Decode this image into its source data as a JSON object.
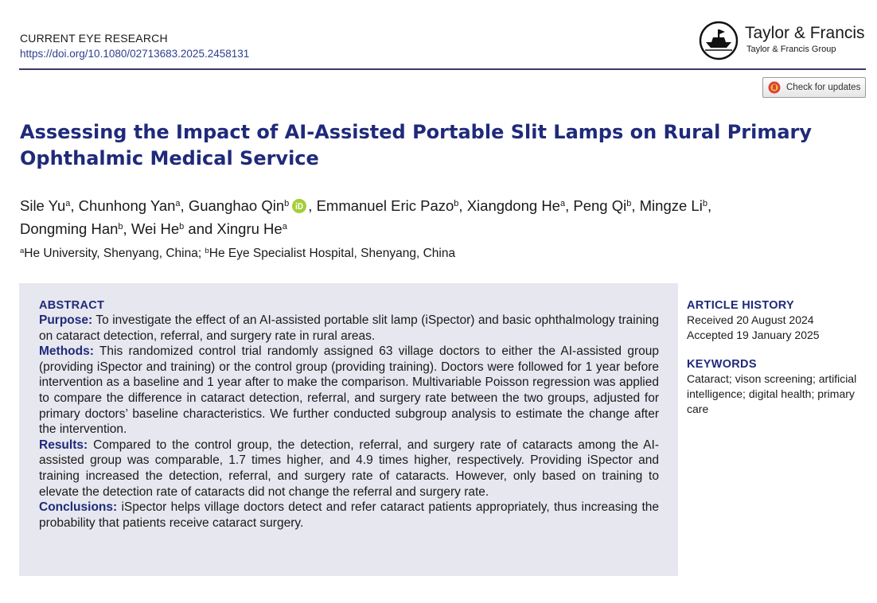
{
  "header": {
    "journal": "CURRENT EYE RESEARCH",
    "doi": "https://doi.org/10.1080/02713683.2025.2458131",
    "publisher_name": "Taylor & Francis",
    "publisher_group": "Taylor & Francis Group",
    "check_updates": "Check for updates"
  },
  "title": "Assessing the Impact of AI-Assisted Portable Slit Lamps on Rural Primary Ophthalmic Medical Service",
  "authors": [
    {
      "name": "Sile Yu",
      "aff": "a"
    },
    {
      "name": "Chunhong Yan",
      "aff": "a"
    },
    {
      "name": "Guanghao Qin",
      "aff": "b"
    },
    {
      "name": "Emmanuel Eric Pazo",
      "aff": "b"
    },
    {
      "name": "Xiangdong He",
      "aff": "a"
    },
    {
      "name": "Peng Qi",
      "aff": "b"
    },
    {
      "name": "Mingze Li",
      "aff": "b"
    },
    {
      "name": "Dongming Han",
      "aff": "b"
    },
    {
      "name": "Wei He",
      "aff": "b"
    },
    {
      "name": "Xingru He",
      "aff": "a"
    }
  ],
  "author_and": "and",
  "affiliations": [
    {
      "label": "a",
      "text": "He University, Shenyang, China;"
    },
    {
      "label": "b",
      "text": "He Eye Specialist Hospital, Shenyang, China"
    }
  ],
  "abstract": {
    "heading": "ABSTRACT",
    "sections": [
      {
        "label": "Purpose:",
        "text": "To investigate the effect of an AI-assisted portable slit lamp (iSpector) and basic ophthalmology training on cataract detection, referral, and surgery rate in rural areas."
      },
      {
        "label": "Methods:",
        "text": "This randomized control trial randomly assigned 63 village doctors to either the AI-assisted group (providing iSpector and training) or the control group (providing training). Doctors were followed for 1 year before intervention as a baseline and 1 year after to make the comparison. Multivariable Poisson regression was applied to compare the difference in cataract detection, referral, and surgery rate between the two groups, adjusted for primary doctors’ baseline characteristics. We further conducted subgroup analysis to estimate the change after the intervention."
      },
      {
        "label": "Results:",
        "text": "Compared to the control group, the detection, referral, and surgery rate of cataracts among the AI-assisted group was comparable, 1.7 times higher, and 4.9 times higher, respectively. Providing iSpector and training increased the detection, referral, and surgery rate of cataracts. However, only based on training to elevate the detection rate of cataracts did not change the referral and surgery rate."
      },
      {
        "label": "Conclusions:",
        "text": "iSpector helps village doctors detect and refer cataract patients appropriately, thus increasing the probability that patients receive cataract surgery."
      }
    ]
  },
  "article_history": {
    "heading": "ARTICLE HISTORY",
    "received": "Received 20 August 2024",
    "accepted": "Accepted 19 January 2025"
  },
  "keywords": {
    "heading": "KEYWORDS",
    "text": "Cataract; vison screening; artificial intelligence; digital health; primary care"
  },
  "colors": {
    "title": "#1f2a7a",
    "link": "#2d3f8c",
    "abstract_bg": "#e7e7ef",
    "orcid": "#a6ce39"
  }
}
